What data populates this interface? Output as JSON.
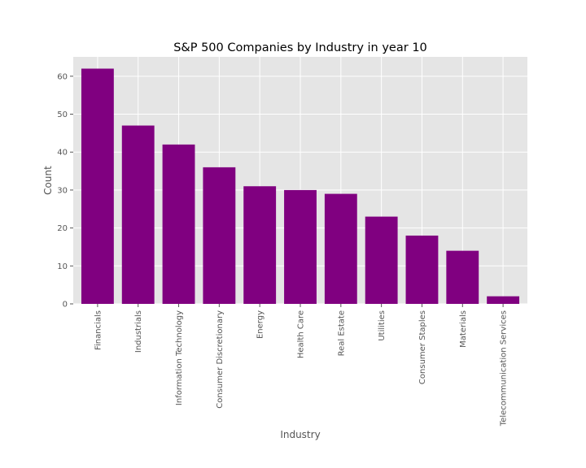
{
  "chart_data": {
    "type": "bar",
    "title": "S&P 500 Companies by Industry in year 10",
    "xlabel": "Industry",
    "ylabel": "Count",
    "categories": [
      "Financials",
      "Industrials",
      "Information Technology",
      "Consumer Discretionary",
      "Energy",
      "Health Care",
      "Real Estate",
      "Utilities",
      "Consumer Staples",
      "Materials",
      "Telecommunication Services"
    ],
    "values": [
      62,
      47,
      42,
      36,
      31,
      30,
      29,
      23,
      18,
      14,
      2
    ],
    "ylim": [
      0,
      65.1
    ],
    "yticks": [
      0,
      10,
      20,
      30,
      40,
      50,
      60
    ],
    "grid": true,
    "legend": "none",
    "colors": {
      "bar": "#800080",
      "plot_background": "#e5e5e5",
      "grid": "#ffffff"
    }
  }
}
